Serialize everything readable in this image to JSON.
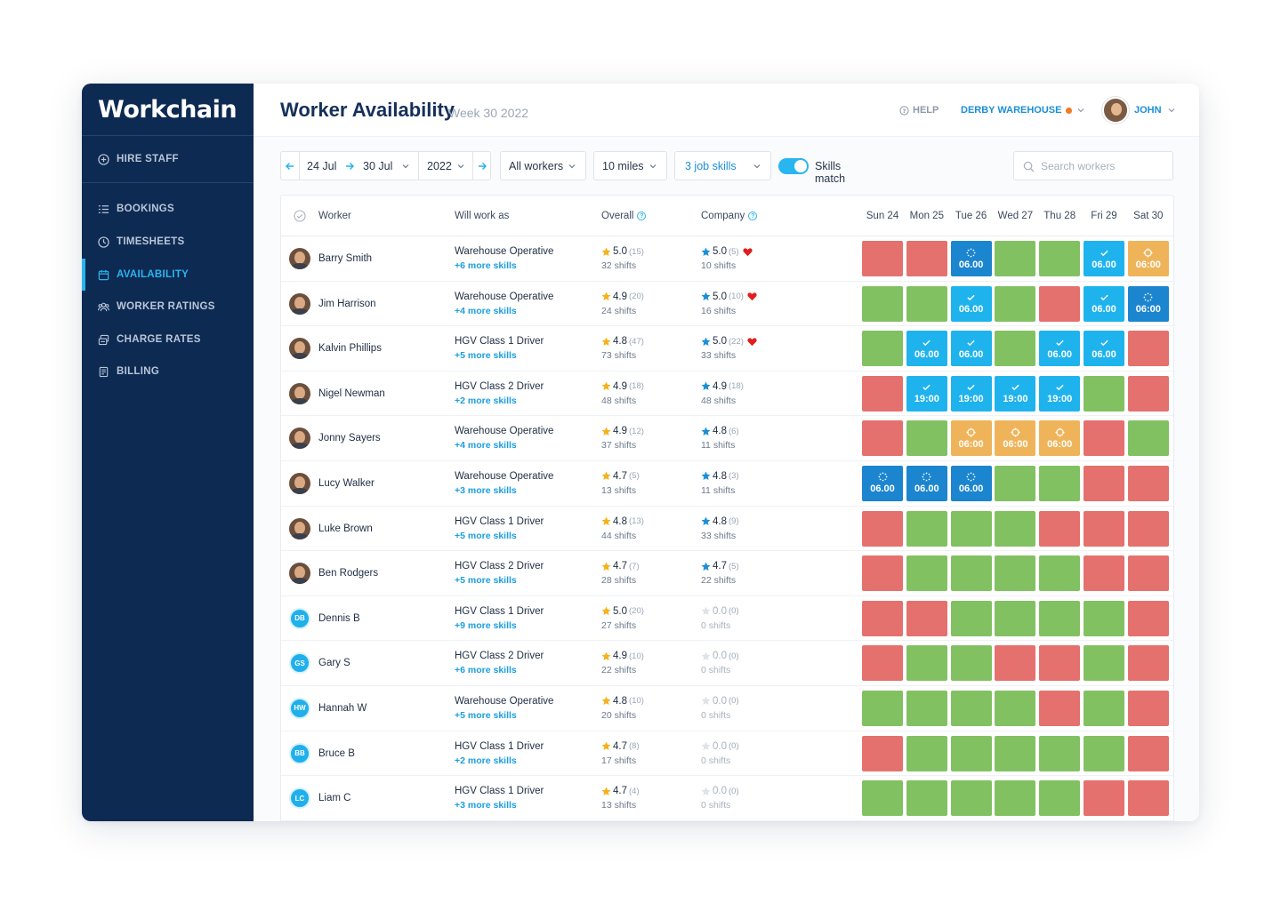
{
  "app": {
    "logo": "Workchain"
  },
  "sidebar": {
    "hire": "HIRE STAFF",
    "items": [
      {
        "label": "BOOKINGS",
        "icon": "list-icon"
      },
      {
        "label": "TIMESHEETS",
        "icon": "clock-icon"
      },
      {
        "label": "AVAILABILITY",
        "icon": "calendar-icon",
        "active": true
      },
      {
        "label": "WORKER RATINGS",
        "icon": "people-icon"
      },
      {
        "label": "CHARGE RATES",
        "icon": "stack-icon"
      },
      {
        "label": "BILLING",
        "icon": "document-icon"
      }
    ]
  },
  "header": {
    "title": "Worker Availability",
    "week": "Week 30 2022",
    "help": "HELP",
    "location": "DERBY WAREHOUSE",
    "user": "JOHN"
  },
  "filters": {
    "date_from": "24 Jul",
    "date_to": "30 Jul",
    "year": "2022",
    "workers": "All workers",
    "distance": "10 miles",
    "skills": "3 job skills",
    "skills_match": "Skills match",
    "search_placeholder": "Search workers"
  },
  "table": {
    "headers": {
      "worker": "Worker",
      "role": "Will work as",
      "overall": "Overall",
      "company": "Company"
    },
    "days": [
      "Sun 24",
      "Mon 25",
      "Tue 26",
      "Wed 27",
      "Thu 28",
      "Fri 29",
      "Sat 30"
    ],
    "rows": [
      {
        "name": "Barry Smith",
        "avatar": "photo",
        "initials": "",
        "role": "Warehouse Operative",
        "skills": "+6 more skills",
        "overall": {
          "rating": "5.0",
          "count": "(15)",
          "shifts": "32 shifts"
        },
        "company": {
          "rating": "5.0",
          "count": "(5)",
          "shifts": "10 shifts",
          "favourite": true
        },
        "days": [
          {
            "s": "red"
          },
          {
            "s": "red"
          },
          {
            "s": "pending",
            "t": "06.00"
          },
          {
            "s": "green"
          },
          {
            "s": "green"
          },
          {
            "s": "booked",
            "t": "06.00"
          },
          {
            "s": "offered",
            "t": "06:00"
          }
        ]
      },
      {
        "name": "Jim Harrison",
        "avatar": "photo",
        "initials": "",
        "role": "Warehouse Operative",
        "skills": "+4 more skills",
        "overall": {
          "rating": "4.9",
          "count": "(20)",
          "shifts": "24 shifts"
        },
        "company": {
          "rating": "5.0",
          "count": "(10)",
          "shifts": "16 shifts",
          "favourite": true
        },
        "days": [
          {
            "s": "green"
          },
          {
            "s": "green"
          },
          {
            "s": "booked",
            "t": "06.00"
          },
          {
            "s": "green"
          },
          {
            "s": "red"
          },
          {
            "s": "booked",
            "t": "06.00"
          },
          {
            "s": "pending",
            "t": "06:00"
          }
        ]
      },
      {
        "name": "Kalvin Phillips",
        "avatar": "photo",
        "initials": "",
        "role": "HGV Class 1 Driver",
        "skills": "+5 more skills",
        "overall": {
          "rating": "4.8",
          "count": "(47)",
          "shifts": "73 shifts"
        },
        "company": {
          "rating": "5.0",
          "count": "(22)",
          "shifts": "33 shifts",
          "favourite": true
        },
        "days": [
          {
            "s": "green"
          },
          {
            "s": "booked",
            "t": "06.00"
          },
          {
            "s": "booked",
            "t": "06.00"
          },
          {
            "s": "green"
          },
          {
            "s": "booked",
            "t": "06.00"
          },
          {
            "s": "booked",
            "t": "06.00"
          },
          {
            "s": "red"
          }
        ]
      },
      {
        "name": "Nigel Newman",
        "avatar": "photo",
        "initials": "",
        "role": "HGV Class 2 Driver",
        "skills": "+2 more skills",
        "overall": {
          "rating": "4.9",
          "count": "(18)",
          "shifts": "48 shifts"
        },
        "company": {
          "rating": "4.9",
          "count": "(18)",
          "shifts": "48 shifts",
          "favourite": false
        },
        "days": [
          {
            "s": "red"
          },
          {
            "s": "booked",
            "t": "19:00"
          },
          {
            "s": "booked",
            "t": "19:00"
          },
          {
            "s": "booked",
            "t": "19:00"
          },
          {
            "s": "booked",
            "t": "19:00"
          },
          {
            "s": "green"
          },
          {
            "s": "red"
          }
        ]
      },
      {
        "name": "Jonny Sayers",
        "avatar": "photo",
        "initials": "",
        "role": "Warehouse Operative",
        "skills": "+4 more skills",
        "overall": {
          "rating": "4.9",
          "count": "(12)",
          "shifts": "37 shifts"
        },
        "company": {
          "rating": "4.8",
          "count": "(6)",
          "shifts": "11 shifts",
          "favourite": false
        },
        "days": [
          {
            "s": "red"
          },
          {
            "s": "green"
          },
          {
            "s": "offered",
            "t": "06:00"
          },
          {
            "s": "offered",
            "t": "06:00"
          },
          {
            "s": "offered",
            "t": "06:00"
          },
          {
            "s": "red"
          },
          {
            "s": "green"
          }
        ]
      },
      {
        "name": "Lucy Walker",
        "avatar": "photo",
        "initials": "",
        "role": "Warehouse Operative",
        "skills": "+3 more skills",
        "overall": {
          "rating": "4.7",
          "count": "(5)",
          "shifts": "13 shifts"
        },
        "company": {
          "rating": "4.8",
          "count": "(3)",
          "shifts": "11 shifts",
          "favourite": false
        },
        "days": [
          {
            "s": "pending",
            "t": "06.00"
          },
          {
            "s": "pending",
            "t": "06.00"
          },
          {
            "s": "pending",
            "t": "06.00"
          },
          {
            "s": "green"
          },
          {
            "s": "green"
          },
          {
            "s": "red"
          },
          {
            "s": "red"
          }
        ]
      },
      {
        "name": "Luke Brown",
        "avatar": "photo",
        "initials": "",
        "role": "HGV Class 1 Driver",
        "skills": "+5 more skills",
        "overall": {
          "rating": "4.8",
          "count": "(13)",
          "shifts": "44 shifts"
        },
        "company": {
          "rating": "4.8",
          "count": "(9)",
          "shifts": "33 shifts",
          "favourite": false
        },
        "days": [
          {
            "s": "red"
          },
          {
            "s": "green"
          },
          {
            "s": "green"
          },
          {
            "s": "green"
          },
          {
            "s": "red"
          },
          {
            "s": "red"
          },
          {
            "s": "red"
          }
        ]
      },
      {
        "name": "Ben Rodgers",
        "avatar": "photo",
        "initials": "",
        "role": "HGV Class 2 Driver",
        "skills": "+5 more skills",
        "overall": {
          "rating": "4.7",
          "count": "(7)",
          "shifts": "28 shifts"
        },
        "company": {
          "rating": "4.7",
          "count": "(5)",
          "shifts": "22 shifts",
          "favourite": false
        },
        "days": [
          {
            "s": "red"
          },
          {
            "s": "green"
          },
          {
            "s": "green"
          },
          {
            "s": "green"
          },
          {
            "s": "green"
          },
          {
            "s": "red"
          },
          {
            "s": "red"
          }
        ]
      },
      {
        "name": "Dennis B",
        "avatar": "initials",
        "initials": "DB",
        "role": "HGV Class 1 Driver",
        "skills": "+9 more skills",
        "overall": {
          "rating": "5.0",
          "count": "(20)",
          "shifts": "27 shifts"
        },
        "company": {
          "rating": "0.0",
          "count": "(0)",
          "shifts": "0 shifts",
          "favourite": false
        },
        "days": [
          {
            "s": "red"
          },
          {
            "s": "red"
          },
          {
            "s": "green"
          },
          {
            "s": "green"
          },
          {
            "s": "green"
          },
          {
            "s": "green"
          },
          {
            "s": "red"
          }
        ]
      },
      {
        "name": "Gary S",
        "avatar": "initials",
        "initials": "GS",
        "role": "HGV Class 2 Driver",
        "skills": "+6 more skills",
        "overall": {
          "rating": "4.9",
          "count": "(10)",
          "shifts": "22 shifts"
        },
        "company": {
          "rating": "0.0",
          "count": "(0)",
          "shifts": "0 shifts",
          "favourite": false
        },
        "days": [
          {
            "s": "red"
          },
          {
            "s": "green"
          },
          {
            "s": "green"
          },
          {
            "s": "red"
          },
          {
            "s": "red"
          },
          {
            "s": "green"
          },
          {
            "s": "red"
          }
        ]
      },
      {
        "name": "Hannah W",
        "avatar": "initials",
        "initials": "HW",
        "role": "Warehouse Operative",
        "skills": "+5 more skills",
        "overall": {
          "rating": "4.8",
          "count": "(10)",
          "shifts": "20 shifts"
        },
        "company": {
          "rating": "0.0",
          "count": "(0)",
          "shifts": "0 shifts",
          "favourite": false
        },
        "days": [
          {
            "s": "green"
          },
          {
            "s": "green"
          },
          {
            "s": "green"
          },
          {
            "s": "green"
          },
          {
            "s": "red"
          },
          {
            "s": "green"
          },
          {
            "s": "red"
          }
        ]
      },
      {
        "name": "Bruce B",
        "avatar": "initials",
        "initials": "BB",
        "role": "HGV Class 1 Driver",
        "skills": "+2 more skills",
        "overall": {
          "rating": "4.7",
          "count": "(8)",
          "shifts": "17 shifts"
        },
        "company": {
          "rating": "0.0",
          "count": "(0)",
          "shifts": "0 shifts",
          "favourite": false
        },
        "days": [
          {
            "s": "red"
          },
          {
            "s": "green"
          },
          {
            "s": "green"
          },
          {
            "s": "green"
          },
          {
            "s": "green"
          },
          {
            "s": "green"
          },
          {
            "s": "red"
          }
        ]
      },
      {
        "name": "Liam C",
        "avatar": "initials",
        "initials": "LC",
        "role": "HGV Class 1 Driver",
        "skills": "+3 more skills",
        "overall": {
          "rating": "4.7",
          "count": "(4)",
          "shifts": "13 shifts"
        },
        "company": {
          "rating": "0.0",
          "count": "(0)",
          "shifts": "0 shifts",
          "favourite": false
        },
        "days": [
          {
            "s": "green"
          },
          {
            "s": "green"
          },
          {
            "s": "green"
          },
          {
            "s": "green"
          },
          {
            "s": "green"
          },
          {
            "s": "red"
          },
          {
            "s": "red"
          }
        ]
      }
    ]
  },
  "colors": {
    "sidebar": "#0d2a52",
    "accent": "#29b5f0",
    "available": "#82c162",
    "unavailable": "#e4716e",
    "booked": "#1fb3ee",
    "pending": "#1c85cf",
    "offered": "#efb45a",
    "star": "#f5b21b",
    "company_star": "#1b8fd6",
    "heart": "#e0201c"
  }
}
